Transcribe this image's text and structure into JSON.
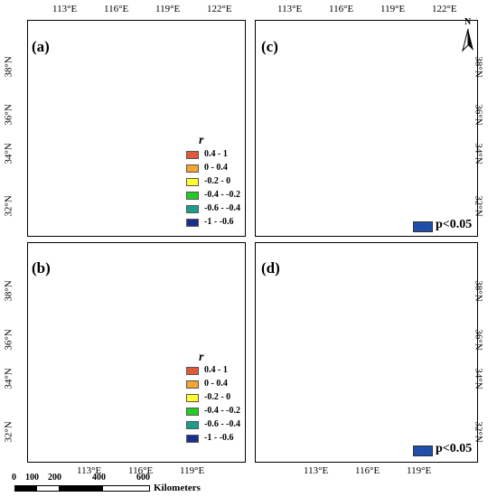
{
  "top_axis": {
    "lon_labels": [
      "113°E",
      "116°E",
      "119°E",
      "122°E"
    ]
  },
  "bottom_axis": {
    "lon_labels": [
      "113°E",
      "116°E",
      "119°E"
    ]
  },
  "left_axis": {
    "lat_labels": [
      "38°N",
      "36°N",
      "34°N",
      "32°N"
    ]
  },
  "right_axis": {
    "lat_labels": [
      "38°N",
      "36°N",
      "34°N",
      "32°N"
    ]
  },
  "panels": {
    "a": {
      "tag": "(a)"
    },
    "b": {
      "tag": "(b)"
    },
    "c": {
      "tag": "(c)"
    },
    "d": {
      "tag": "(d)"
    }
  },
  "correlation_legend": {
    "title": "r",
    "items": [
      {
        "label": "0.4 - 1",
        "color": "#e05a3a"
      },
      {
        "label": "0 - 0.4",
        "color": "#f2a530"
      },
      {
        "label": "-0.2 - 0",
        "color": "#ffff33"
      },
      {
        "label": "-0.4 - -0.2",
        "color": "#22cc22"
      },
      {
        "label": "-0.6 - -0.4",
        "color": "#1a9e8a"
      },
      {
        "label": "-1 - -0.6",
        "color": "#1a2f8c"
      }
    ]
  },
  "significance_legend": {
    "label": "p<0.05",
    "color": "#1f4fa8"
  },
  "north_arrow": {
    "letter": "N"
  },
  "scale_bar": {
    "ticks": [
      "0",
      "100",
      "200",
      "400",
      "600"
    ],
    "unit": "Kilometers"
  }
}
